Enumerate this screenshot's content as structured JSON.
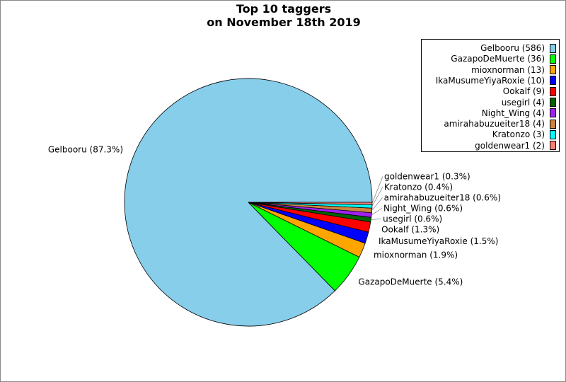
{
  "chart_data": {
    "type": "pie",
    "title_line1": "Top 10 taggers",
    "title_line2": "on November 18th 2019",
    "legend_placement": "top-right",
    "start_angle_deg": 0,
    "direction": "counterclockwise",
    "slices": [
      {
        "name": "Gelbooru",
        "value": 586,
        "percent": "87.3%",
        "color": "#87ceeb"
      },
      {
        "name": "GazapoDeMuerte",
        "value": 36,
        "percent": "5.4%",
        "color": "#00ff00"
      },
      {
        "name": "mioxnorman",
        "value": 13,
        "percent": "1.9%",
        "color": "#ffa500"
      },
      {
        "name": "IkaMusumeYiyaRoxie",
        "value": 10,
        "percent": "1.5%",
        "color": "#0000ff"
      },
      {
        "name": "Ookalf",
        "value": 9,
        "percent": "1.3%",
        "color": "#ff0000"
      },
      {
        "name": "usegirl",
        "value": 4,
        "percent": "0.6%",
        "color": "#006400"
      },
      {
        "name": "Night_Wing",
        "value": 4,
        "percent": "0.6%",
        "color": "#a020f0"
      },
      {
        "name": "amirahabuzueiter18",
        "value": 4,
        "percent": "0.6%",
        "color": "#cd853f"
      },
      {
        "name": "Kratonzo",
        "value": 3,
        "percent": "0.4%",
        "color": "#00ffff"
      },
      {
        "name": "goldenwear1",
        "value": 2,
        "percent": "0.3%",
        "color": "#fa8072"
      }
    ]
  }
}
